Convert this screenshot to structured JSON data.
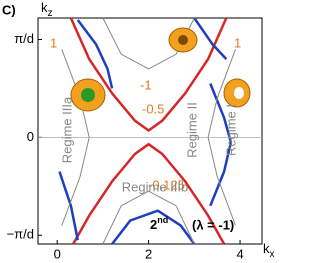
{
  "chart_data": {
    "type": "contour",
    "panel_label": "C)",
    "x_label": "k",
    "x_label_sub": "x",
    "y_label": "k",
    "y_label_sub": "z",
    "xlim": [
      -0.42,
      4.48
    ],
    "ylim": [
      -1.09,
      1.22
    ],
    "xticks": [
      0,
      2,
      4
    ],
    "yticks": [
      {
        "value": -1,
        "label": "−π/d"
      },
      0,
      {
        "value": 1,
        "label": "π/d"
      }
    ],
    "contour_labels": [
      1,
      -1,
      -0.5,
      -0.125,
      1
    ],
    "regions": [
      "Regime IIIa",
      "Regime II",
      "Regime I",
      "Regime IIIb"
    ],
    "order": "2",
    "order_suffix": "nd",
    "lambda_label": "(λ = -1)",
    "contours": [
      {
        "color": "#d62728",
        "x": [
          0.3,
          0.7,
          1.2,
          1.7,
          2.0,
          2.3,
          2.8,
          3.3,
          3.7
        ],
        "y": [
          1.22,
          0.8,
          0.45,
          0.17,
          0.07,
          0.17,
          0.45,
          0.8,
          1.22
        ]
      },
      {
        "color": "#d62728",
        "x": [
          0.35,
          0.7,
          1.2,
          1.7,
          2.0,
          2.3,
          2.8,
          3.3,
          3.65
        ],
        "y": [
          -1.09,
          -0.8,
          -0.45,
          -0.17,
          -0.07,
          -0.17,
          -0.45,
          -0.8,
          -1.09
        ]
      },
      {
        "color": "#1f3fbf",
        "x": [
          0.45,
          0.85,
          1.1,
          1.2
        ],
        "y": [
          1.2,
          0.95,
          0.7,
          0.5
        ]
      },
      {
        "color": "#1f3fbf",
        "x": [
          3.35,
          3.65,
          3.8,
          3.65,
          3.35
        ],
        "y": [
          0.55,
          0.2,
          -0.05,
          -0.35,
          -0.7
        ]
      },
      {
        "color": "#1f3fbf",
        "x": [
          0.05,
          0.3,
          0.45
        ],
        "y": [
          -0.35,
          -0.7,
          -1.05
        ]
      },
      {
        "color": "#1f3fbf",
        "x": [
          1.2,
          1.6,
          2.2,
          2.7,
          3.0
        ],
        "y": [
          -1.09,
          -0.85,
          -0.75,
          -0.9,
          -1.09
        ]
      },
      {
        "color": "#1f3fbf",
        "x": [
          3.0,
          3.4,
          3.7
        ],
        "y": [
          1.22,
          0.95,
          0.8
        ]
      },
      {
        "color": "#888888",
        "x": [
          0.1,
          0.5,
          0.7,
          0.5,
          0.1
        ],
        "y": [
          0.9,
          0.4,
          0.0,
          -0.4,
          -0.9
        ]
      },
      {
        "color": "#888888",
        "x": [
          3.9,
          3.5,
          3.3,
          3.5,
          3.9
        ],
        "y": [
          0.9,
          0.4,
          0.0,
          -0.4,
          -0.9
        ]
      },
      {
        "color": "#888888",
        "x": [
          1.0,
          1.4,
          2.0,
          2.6,
          3.0
        ],
        "y": [
          -1.09,
          -0.7,
          -0.55,
          -0.7,
          -1.09
        ]
      },
      {
        "color": "#888888",
        "x": [
          1.0,
          1.4,
          2.0,
          2.6,
          3.0
        ],
        "y": [
          1.22,
          0.85,
          0.7,
          0.85,
          1.22
        ]
      }
    ]
  }
}
